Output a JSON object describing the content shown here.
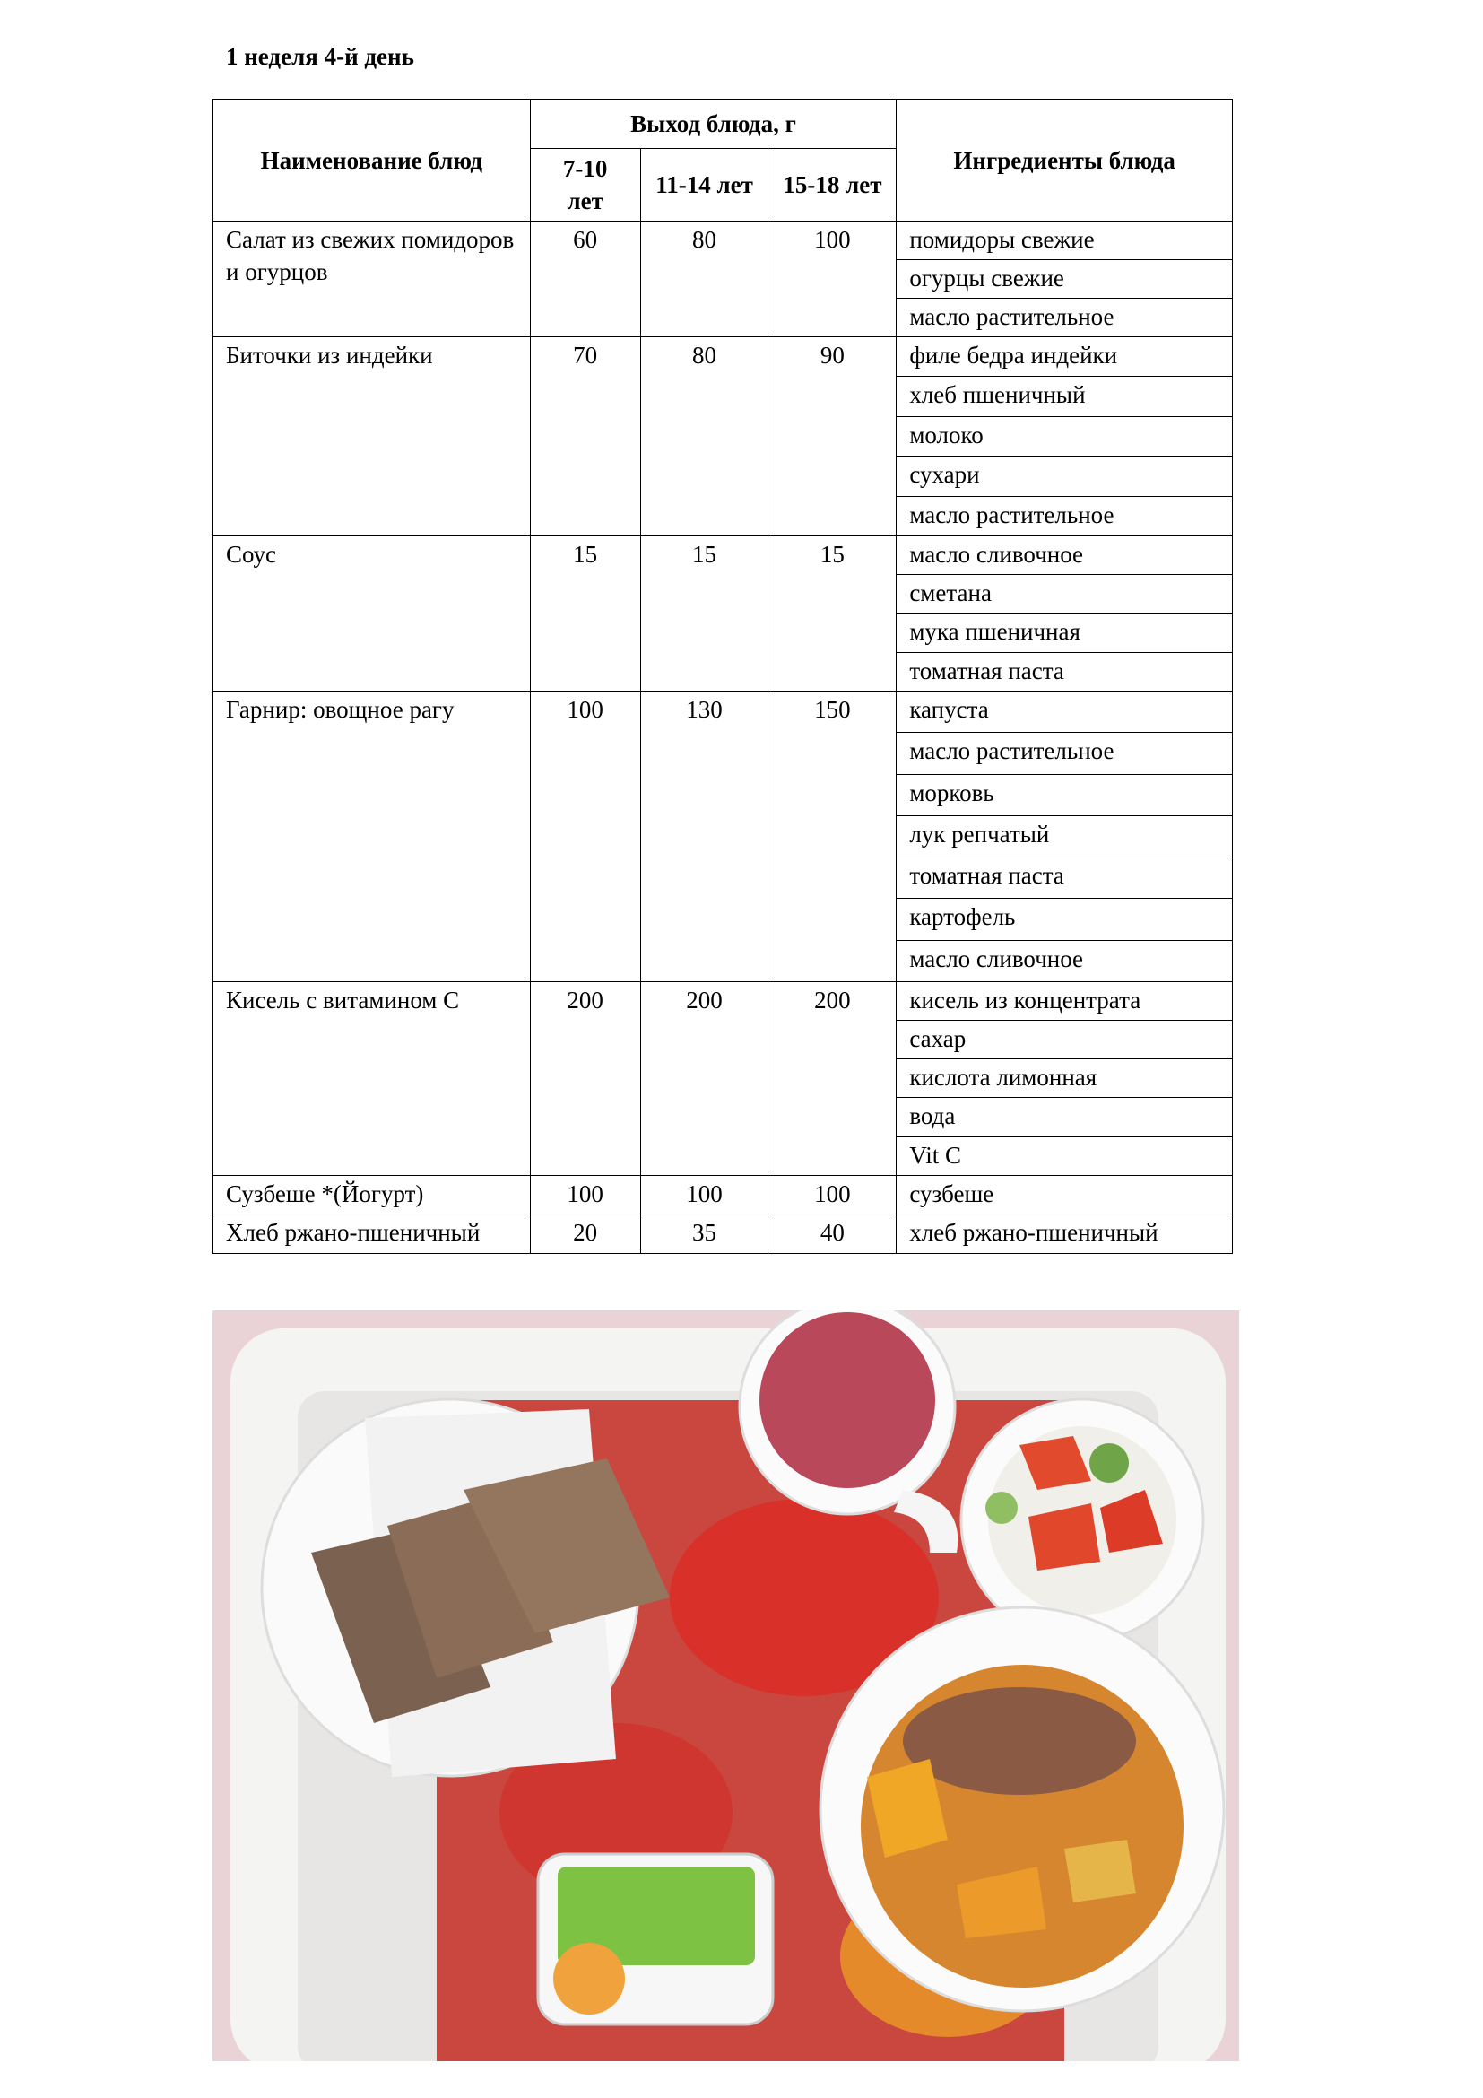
{
  "title": "1 неделя 4-й день",
  "table": {
    "header": {
      "dish": "Наименование блюд",
      "yield": "Выход блюда, г",
      "ages": [
        "7-10 лет",
        "11-14 лет",
        "15-18 лет"
      ],
      "ingredients": "Ингредиенты блюда"
    },
    "rows": [
      {
        "dish": "Салат из свежих помидоров и огурцов",
        "yields": [
          60,
          80,
          100
        ],
        "ingredients": [
          "помидоры свежие",
          "огурцы свежие",
          "масло растительное"
        ]
      },
      {
        "dish": "Биточки из индейки",
        "yields": [
          70,
          80,
          90
        ],
        "ingredients": [
          "филе бедра индейки",
          "хлеб пшеничный",
          "молоко",
          "сухари",
          "масло растительное"
        ]
      },
      {
        "dish": "Соус",
        "yields": [
          15,
          15,
          15
        ],
        "ingredients": [
          "масло сливочное",
          "сметана",
          "мука пшеничная",
          "томатная паста"
        ]
      },
      {
        "dish": "Гарнир: овощное рагу",
        "yields": [
          100,
          130,
          150
        ],
        "ingredients": [
          "капуста",
          "масло растительное",
          "морковь",
          "лук репчатый",
          "томатная паста",
          "картофель",
          "масло сливочное"
        ]
      },
      {
        "dish": "Кисель с витамином С",
        "yields": [
          200,
          200,
          200
        ],
        "ingredients": [
          "кисель из концентрата",
          "сахар",
          "кислота лимонная",
          "вода",
          "Vit C"
        ]
      },
      {
        "dish": "Сузбеше *(Йогурт)",
        "yields": [
          100,
          100,
          100
        ],
        "ingredients": [
          "сузбеше"
        ]
      },
      {
        "dish": "Хлеб ржано-пшеничный",
        "yields": [
          20,
          35,
          40
        ],
        "ingredients": [
          "хлеб ржано-пшеничный"
        ]
      }
    ]
  }
}
